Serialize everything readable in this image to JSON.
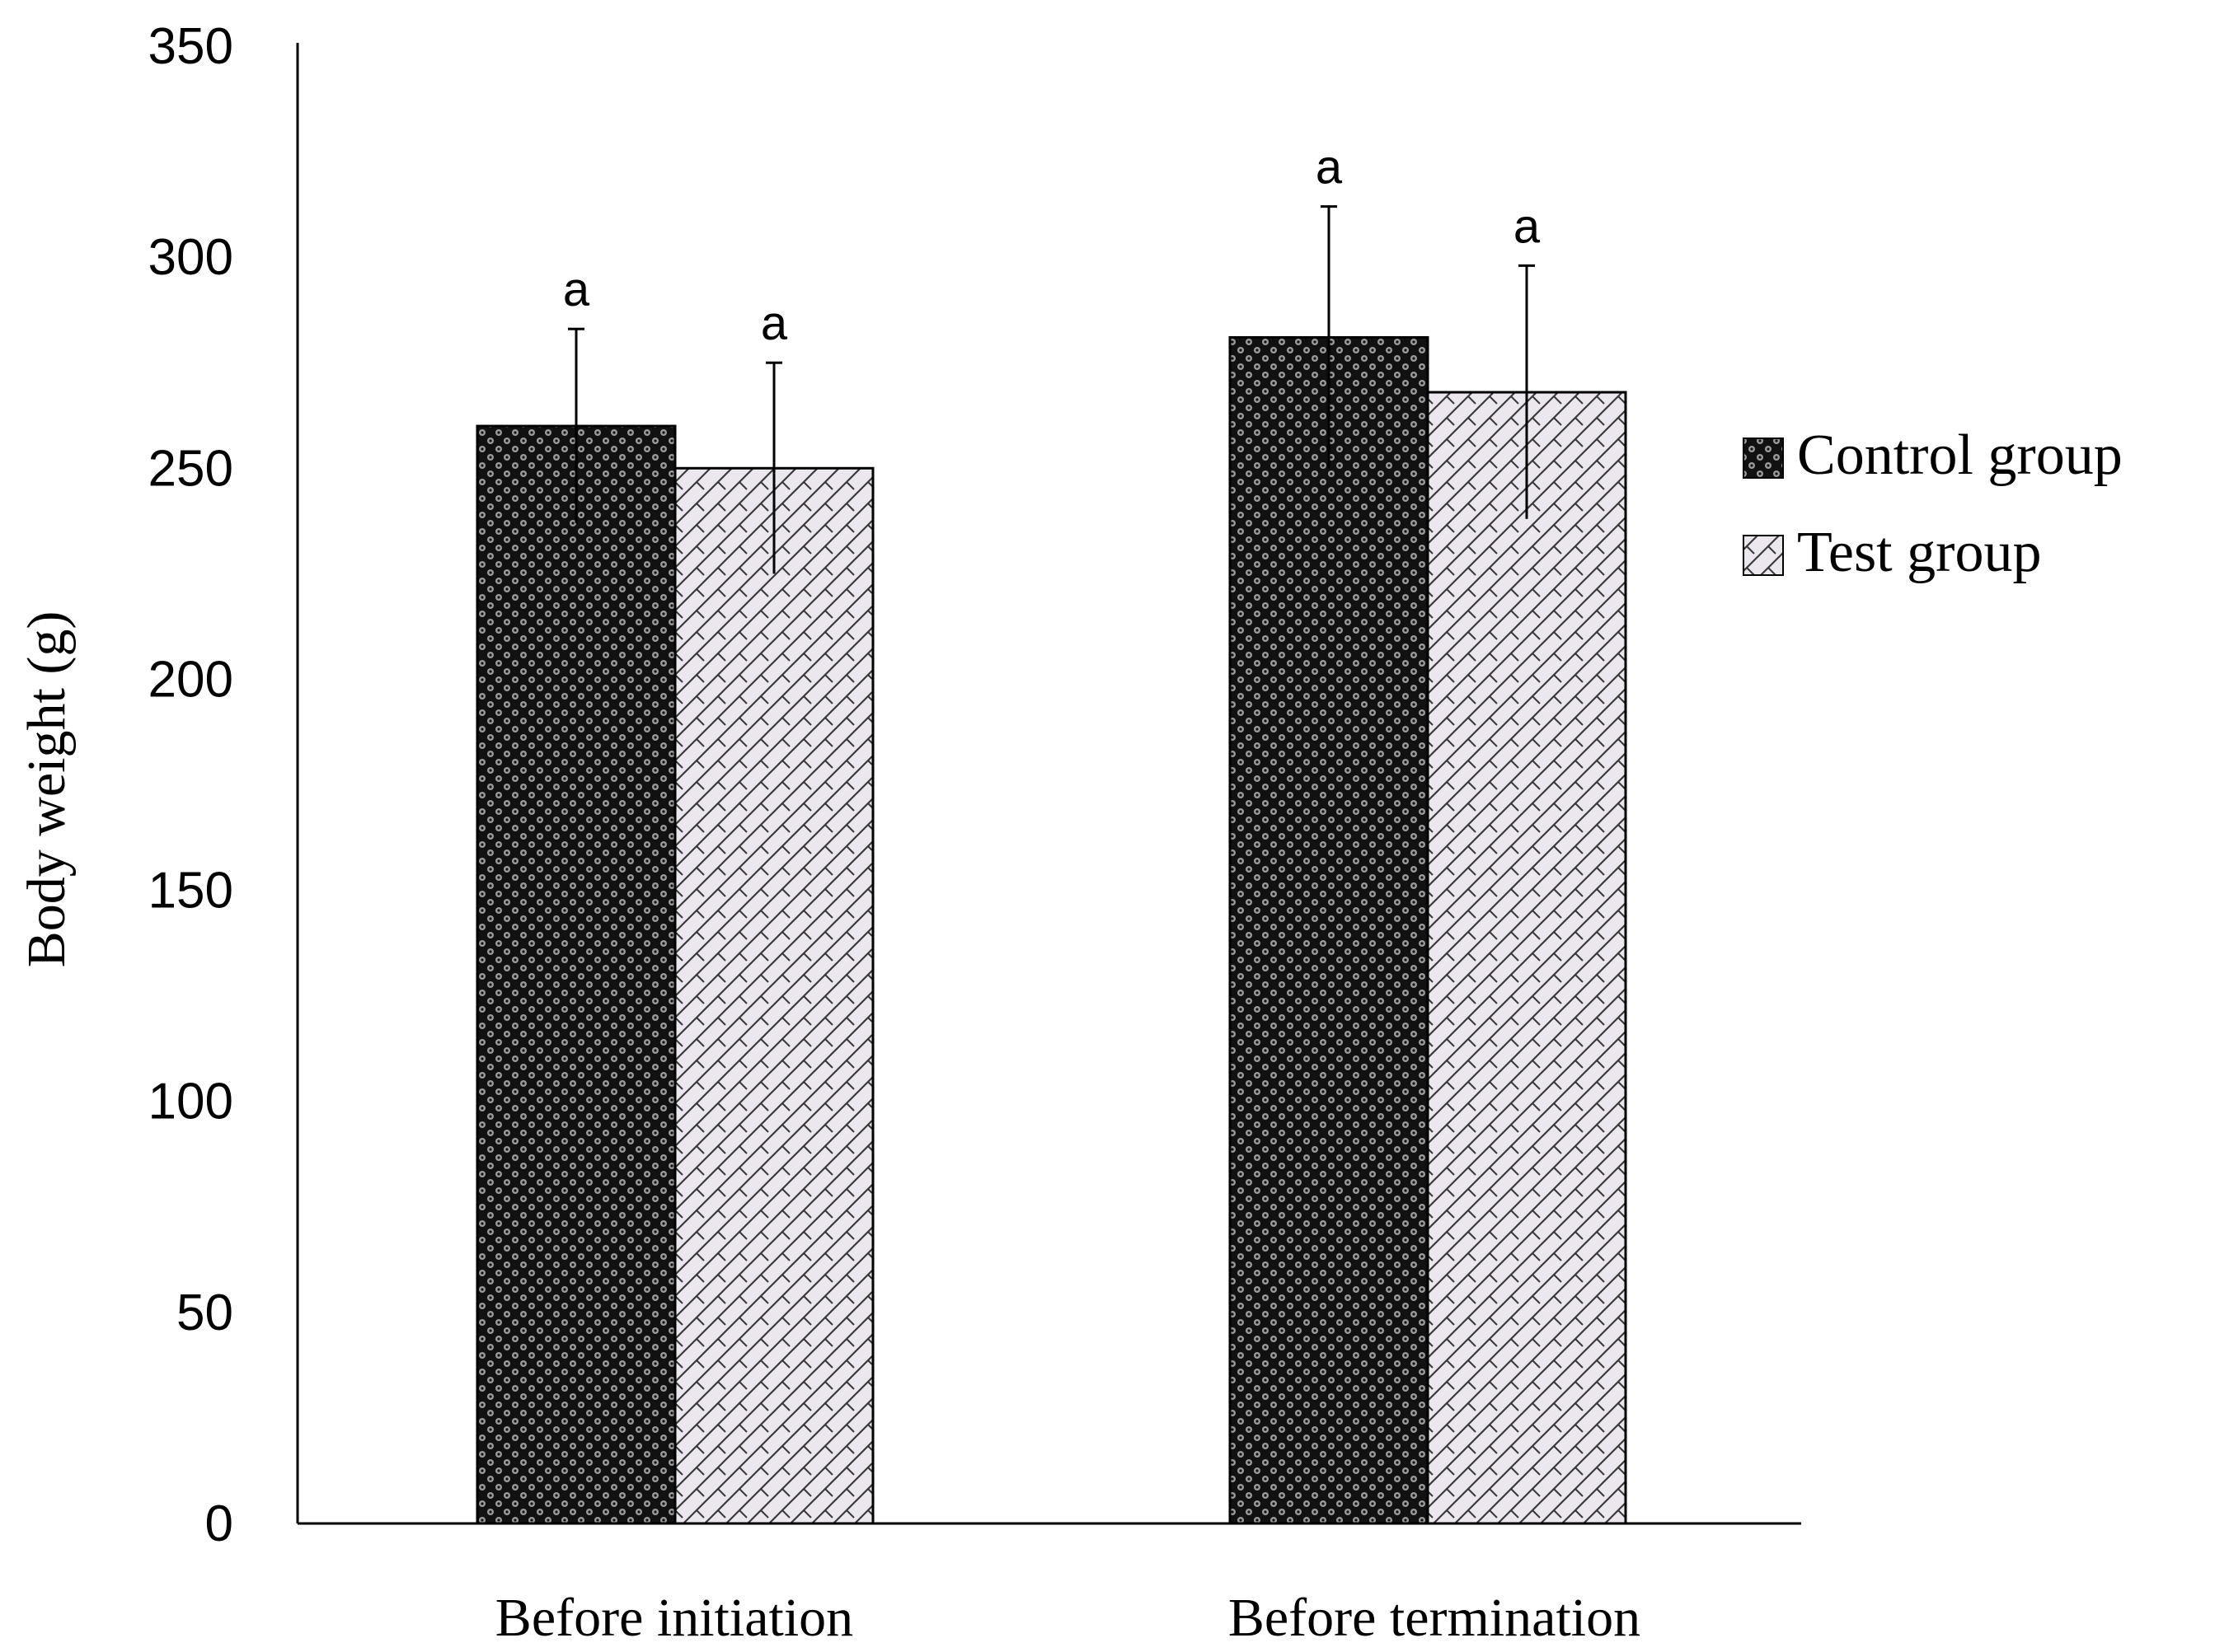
{
  "chart_data": {
    "type": "bar",
    "title": "",
    "xlabel": "",
    "ylabel": "Body weight (g)",
    "ylim": [
      0,
      350
    ],
    "yticks": [
      0,
      50,
      100,
      150,
      200,
      250,
      300,
      350
    ],
    "ytick_labels": [
      "0",
      "50",
      "100",
      "150",
      "200",
      "250",
      "300",
      "350"
    ],
    "grid": false,
    "legend_position": "right",
    "categories": [
      "Before initiation",
      "Before termination"
    ],
    "series": [
      {
        "name": "Control group",
        "pattern": "dots",
        "color": "#000000",
        "values": [
          260,
          281
        ],
        "error": [
          23,
          31
        ],
        "labels": [
          "a",
          "a"
        ]
      },
      {
        "name": "Test group",
        "pattern": "diagonal-brick",
        "color": "#ece6ef",
        "values": [
          250,
          268
        ],
        "error": [
          25,
          30
        ],
        "labels": [
          "a",
          "a"
        ]
      }
    ]
  }
}
